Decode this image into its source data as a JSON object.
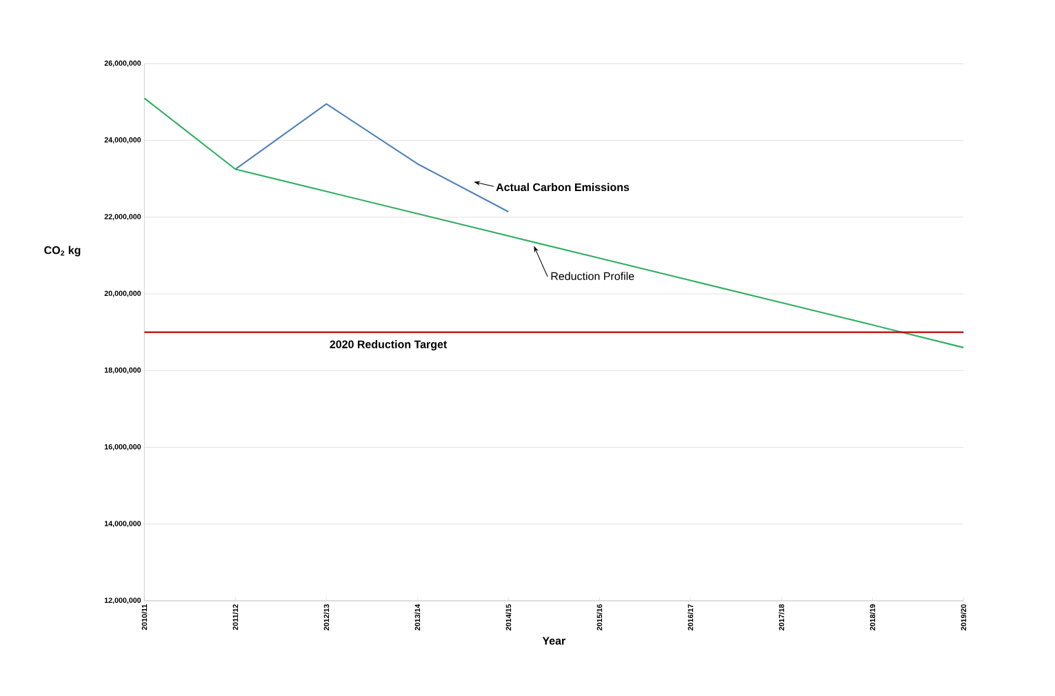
{
  "chart_data": {
    "type": "line",
    "xlabel": "Year",
    "ylabel": "CO$_{2}$ kg",
    "categories": [
      "2010/11",
      "2011/12",
      "2012/13",
      "2013/14",
      "2014/15",
      "2015/16",
      "2016/17",
      "2017/18",
      "2018/19",
      "2019/20"
    ],
    "series": [
      {
        "name": "Actual Carbon Emissions",
        "color": "#4f81bd",
        "values": [
          null,
          23250000,
          24950000,
          23390000,
          22140000,
          null,
          null,
          null,
          null,
          null
        ]
      },
      {
        "name": "Reduction Profile",
        "color": "#2eae5e",
        "values": [
          25100000,
          23250000,
          22670000,
          22090000,
          21510000,
          20930000,
          20350000,
          19770000,
          19190000,
          18600000
        ]
      }
    ],
    "ylim": [
      12000000,
      26000000
    ],
    "yticks": [
      {
        "value": 12000000,
        "label": "12,000,000"
      },
      {
        "value": 14000000,
        "label": "14,000,000"
      },
      {
        "value": 16000000,
        "label": "16,000,000"
      },
      {
        "value": 18000000,
        "label": "18,000,000"
      },
      {
        "value": 20000000,
        "label": "20,000,000"
      },
      {
        "value": 22000000,
        "label": "22,000,000"
      },
      {
        "value": 24000000,
        "label": "24,000,000"
      },
      {
        "value": 26000000,
        "label": "26,000,000"
      }
    ],
    "ref_lines": [
      {
        "axis": "y",
        "value": 19000000,
        "label": "2020 Reduction Target",
        "color": "#c00000"
      }
    ],
    "grid": "y",
    "legend": false,
    "marker": "none",
    "line_style": "solid"
  }
}
